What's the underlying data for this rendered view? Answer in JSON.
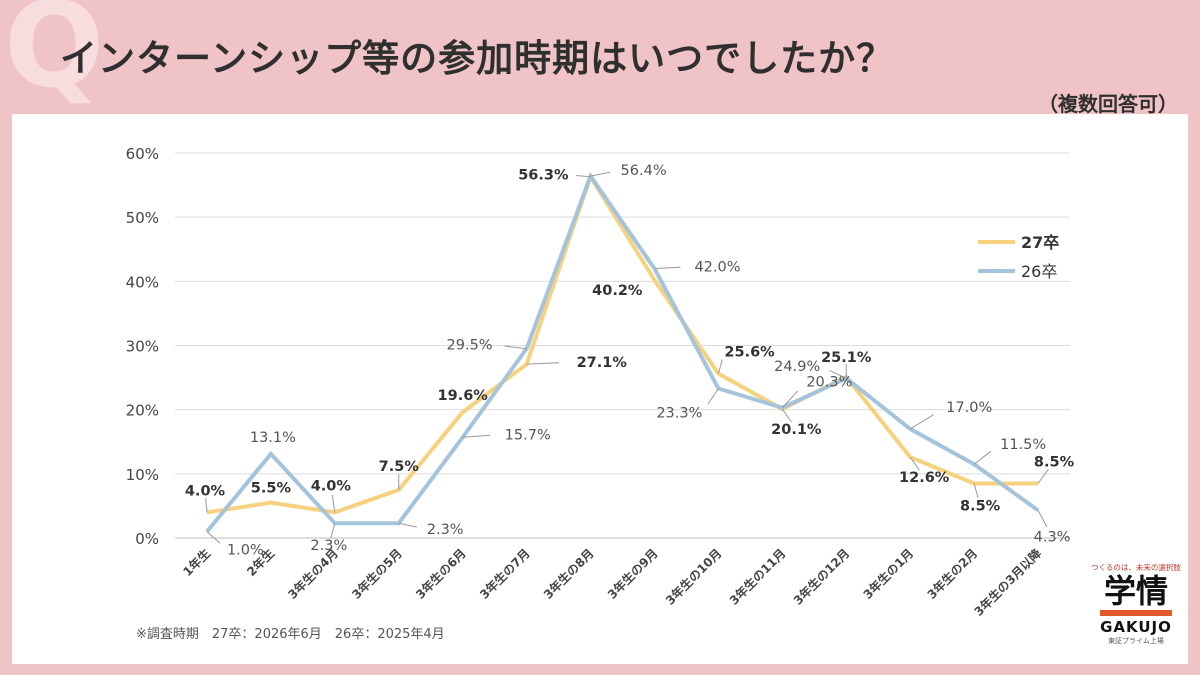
{
  "header": {
    "q_mark": "Q",
    "title": "インターンシップ等の参加時期はいつでしたか？",
    "subtitle": "（複数回答可）"
  },
  "footnote": "※調査時期　27卒：2026年6月　26卒：2025年4月",
  "logo": {
    "tagline": "つくるのは、未来の選択肢",
    "name": "学情",
    "name_en": "GAKUJO",
    "sub": "東証プライム上場"
  },
  "colors": {
    "s27": "#f7d27e",
    "s26": "#a4c4dc"
  },
  "chart_data": {
    "type": "line",
    "x": [
      "1年生",
      "2年生",
      "3年生の4月",
      "3年生の5月",
      "3年生の6月",
      "3年生の7月",
      "3年生の8月",
      "3年生の9月",
      "3年生の10月",
      "3年生の11月",
      "3年生の12月",
      "3年生の1月",
      "3年生の2月",
      "3年生の3月以降"
    ],
    "ylim": [
      0,
      60
    ],
    "yticks": [
      0,
      10,
      20,
      30,
      40,
      50,
      60
    ],
    "ytick_labels": [
      "0%",
      "10%",
      "20%",
      "30%",
      "40%",
      "50%",
      "60%"
    ],
    "grid": true,
    "legend_position": "right",
    "series": [
      {
        "name": "27卒",
        "values": [
          4.0,
          5.5,
          4.0,
          7.5,
          19.6,
          27.1,
          56.3,
          40.2,
          25.6,
          20.1,
          25.1,
          12.6,
          8.5,
          8.5
        ],
        "labels": [
          "4.0%",
          "5.5%",
          "4.0%",
          "7.5%",
          "19.6%",
          "27.1%",
          "56.3%",
          "40.2%",
          "25.6%",
          "20.1%",
          "25.1%",
          "12.6%",
          "8.5%",
          "8.5%"
        ]
      },
      {
        "name": "26卒",
        "values": [
          1.0,
          13.1,
          2.3,
          2.3,
          15.7,
          29.5,
          56.4,
          42.0,
          23.3,
          20.3,
          24.9,
          17.0,
          11.5,
          4.3
        ],
        "labels": [
          "1.0%",
          "13.1%",
          "2.3%",
          "2.3%",
          "15.7%",
          "29.5%",
          "56.4%",
          "42.0%",
          "23.3%",
          "20.3%",
          "24.9%",
          "17.0%",
          "11.5%",
          "4.3%"
        ]
      }
    ]
  }
}
